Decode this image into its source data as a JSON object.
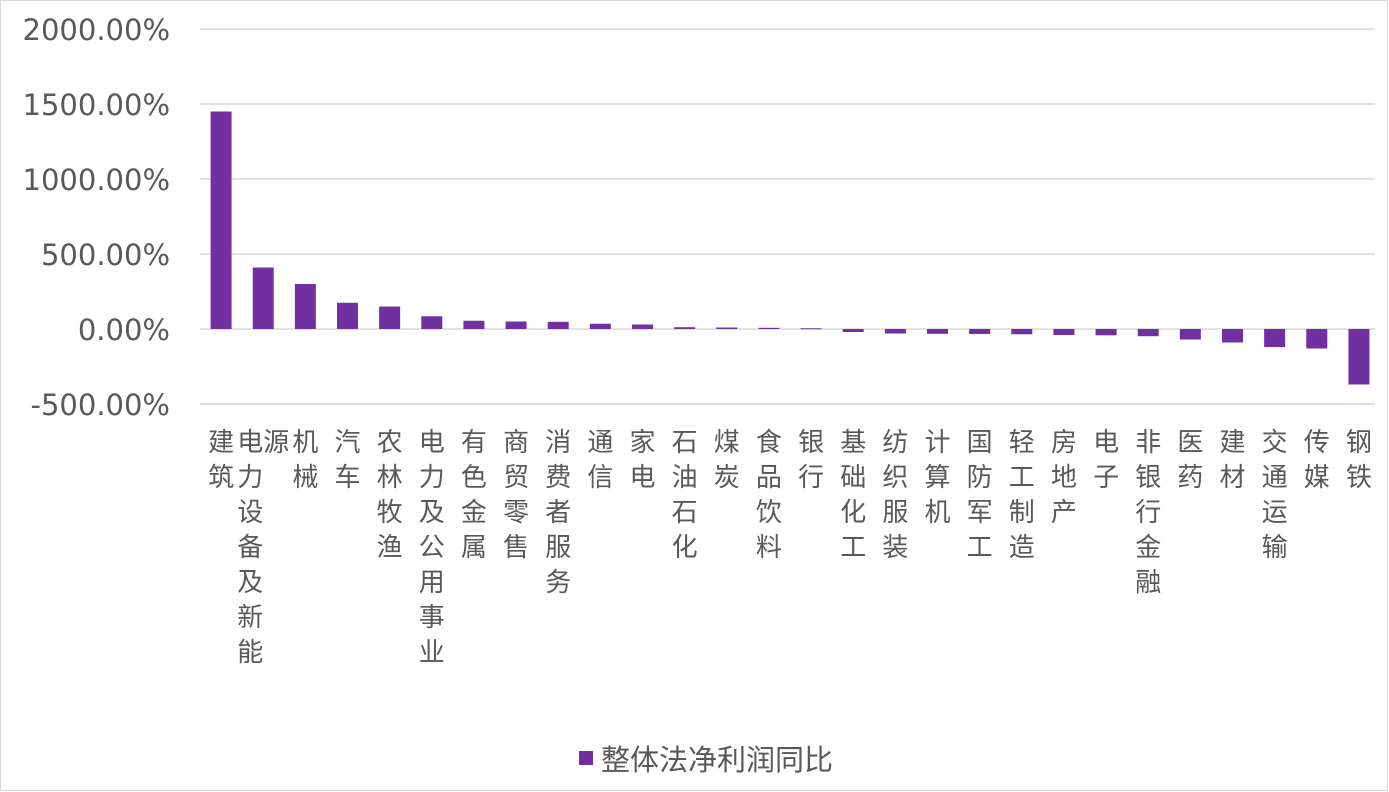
{
  "chart_data": {
    "type": "bar",
    "title": "",
    "xlabel": "",
    "ylabel": "",
    "ylim": [
      -500,
      2000
    ],
    "yticks": [
      2000,
      1500,
      1000,
      500,
      0,
      -500
    ],
    "ytick_labels": [
      "2000.00%",
      "1500.00%",
      "1000.00%",
      "500.00%",
      "0.00%",
      "-500.00%"
    ],
    "grid": true,
    "legend_position": "bottom",
    "bar_color": "#7030A0",
    "grid_color": "#d9d9d9",
    "text_color": "#595959",
    "categories": [
      "建筑",
      "电力设备及新能源",
      "机械",
      "汽车",
      "农林牧渔",
      "电力及公用事业",
      "有色金属",
      "商贸零售",
      "消费者服务",
      "通信",
      "家电",
      "石油石化",
      "煤炭",
      "食品饮料",
      "银行",
      "基础化工",
      "纺织服装",
      "计算机",
      "国防军工",
      "轻工制造",
      "房地产",
      "电子",
      "非银行金融",
      "医药",
      "建材",
      "交通运输",
      "传媒",
      "钢铁"
    ],
    "series": [
      {
        "name": "整体法净利润同比",
        "values": [
          1450,
          410,
          300,
          175,
          150,
          85,
          55,
          50,
          48,
          35,
          30,
          12,
          10,
          8,
          5,
          -20,
          -30,
          -32,
          -33,
          -35,
          -40,
          -42,
          -48,
          -70,
          -90,
          -120,
          -130,
          -370
        ]
      }
    ]
  }
}
